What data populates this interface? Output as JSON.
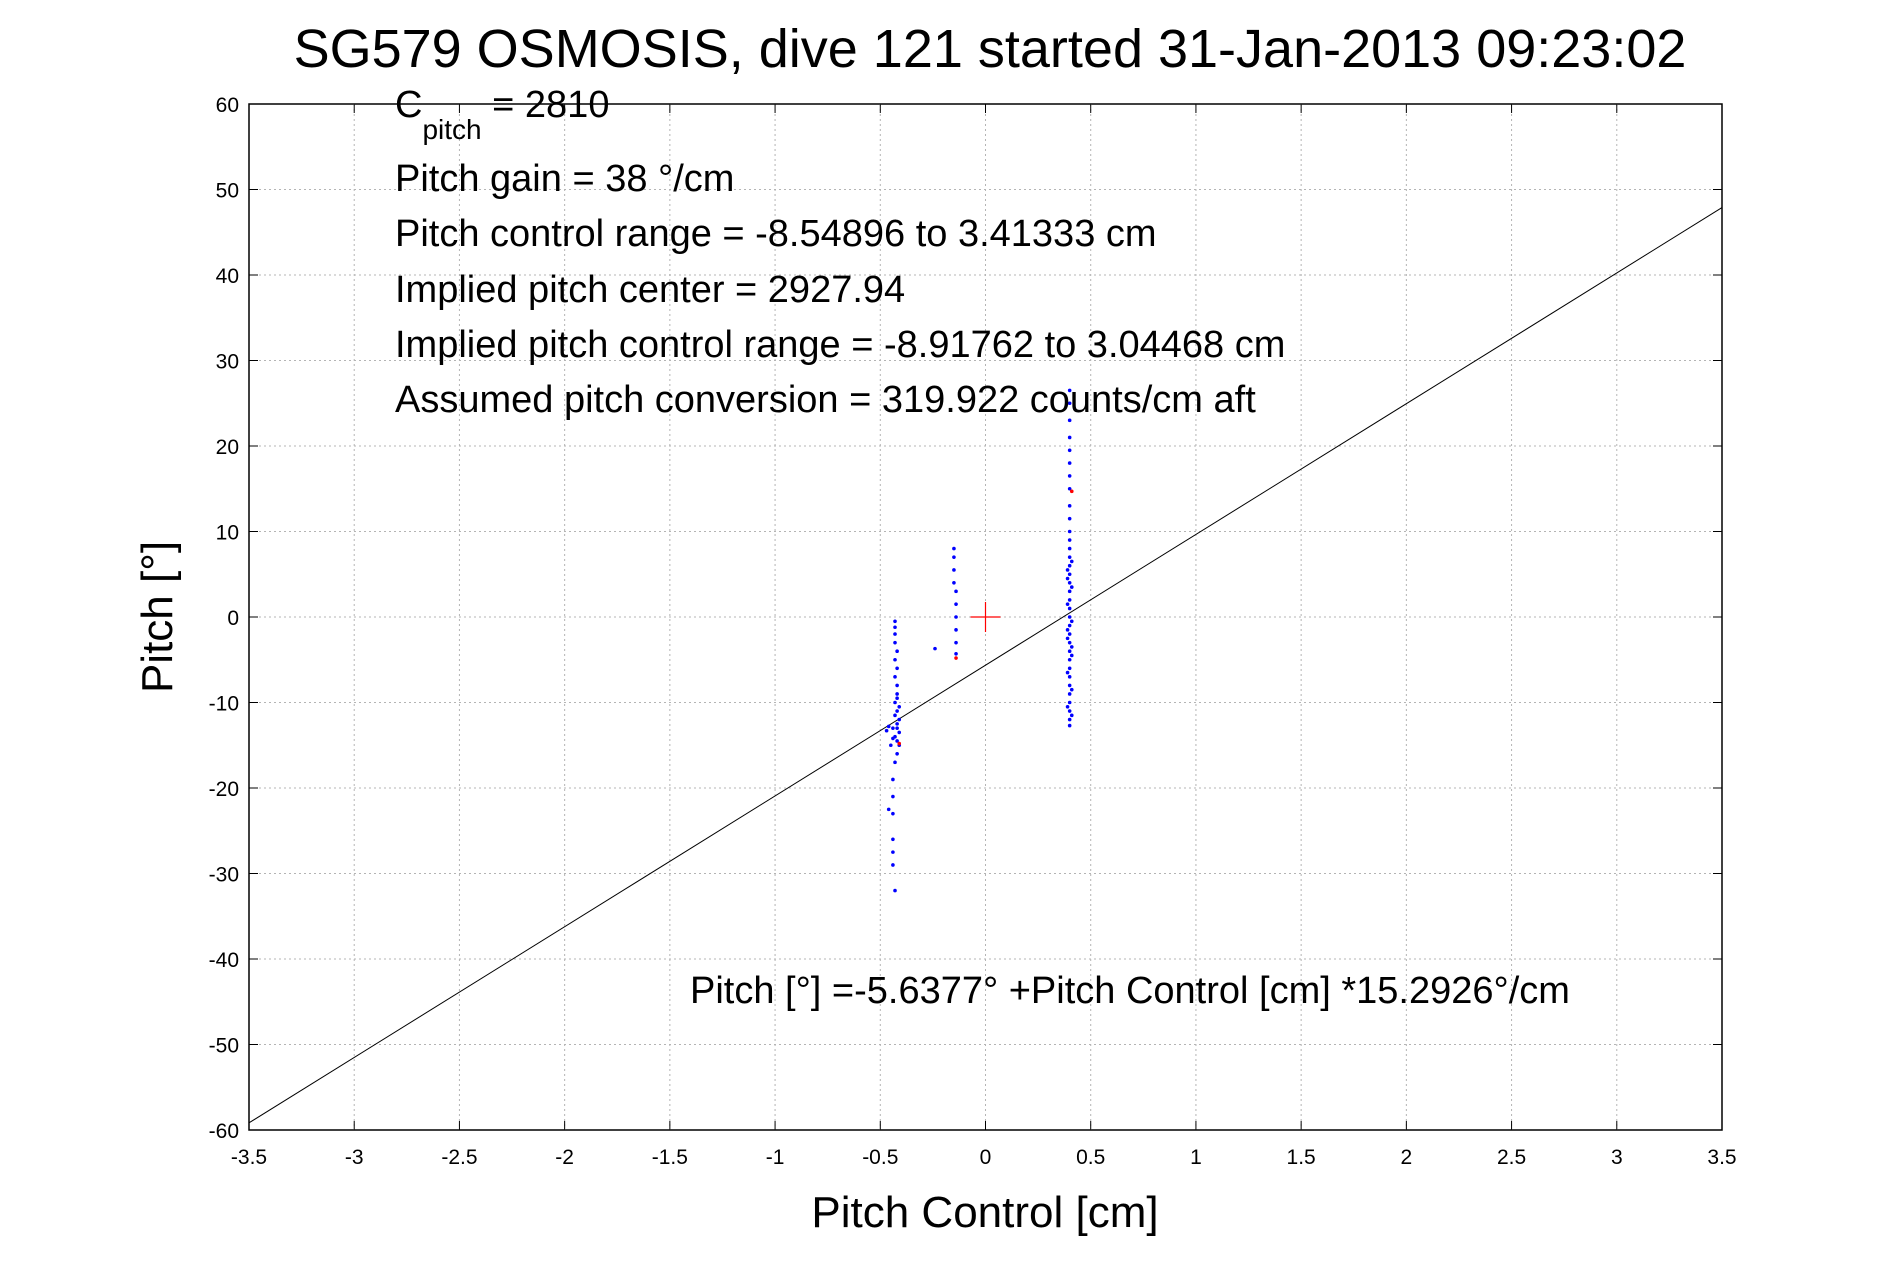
{
  "chart_data": {
    "type": "scatter",
    "title": "SG579 OSMOSIS, dive 121 started 31-Jan-2013 09:23:02",
    "xlabel": "Pitch Control [cm]",
    "ylabel": "Pitch [°]",
    "xlim": [
      -3.5,
      3.5
    ],
    "ylim": [
      -60,
      60
    ],
    "xticks": [
      -3.5,
      -3,
      -2.5,
      -2,
      -1.5,
      -1,
      -0.5,
      0,
      0.5,
      1,
      1.5,
      2,
      2.5,
      3,
      3.5
    ],
    "xtick_labels": [
      "-3.5",
      "-3",
      "-2.5",
      "-2",
      "-1.5",
      "-1",
      "-0.5",
      "0",
      "0.5",
      "1",
      "1.5",
      "2",
      "2.5",
      "3",
      "3.5"
    ],
    "yticks": [
      60,
      50,
      40,
      30,
      20,
      10,
      0,
      -10,
      -20,
      -30,
      -40,
      -50,
      -60
    ],
    "ytick_labels": [
      "60",
      "50",
      "40",
      "30",
      "20",
      "10",
      "0",
      "-10",
      "-20",
      "-30",
      "-40",
      "-50",
      "-60"
    ],
    "grid": true,
    "fit": {
      "intercept": -5.6377,
      "slope": 15.2926
    },
    "annotations": {
      "c_pitch_main": "C",
      "c_pitch_sub": "pitch",
      "c_pitch_value": " = 2810",
      "pitch_gain": "Pitch gain = 38 °/cm",
      "control_range": "Pitch control range = -8.54896 to 3.41333 cm",
      "implied_center": "Implied pitch center = 2927.94",
      "implied_range": "Implied pitch control range = -8.91762 to 3.04468 cm",
      "conversion": "Assumed pitch conversion = 319.922 counts/cm aft",
      "fit_equation": "Pitch [°] =-5.6377° +Pitch Control [cm] *15.2926°/cm"
    },
    "center_marker": {
      "x": 0,
      "y": 0
    },
    "colors": {
      "points": "#0000ff",
      "highlight": "#ff0000",
      "fit_line": "#000000",
      "grid": "#b4b4b4"
    },
    "series": [
      {
        "color": "#0000ff",
        "points": [
          [
            -0.43,
            -0.5
          ],
          [
            -0.43,
            -1.2
          ],
          [
            -0.43,
            -2
          ],
          [
            -0.43,
            -3
          ],
          [
            -0.42,
            -4
          ],
          [
            -0.43,
            -5
          ],
          [
            -0.42,
            -6
          ],
          [
            -0.43,
            -7
          ],
          [
            -0.42,
            -8
          ],
          [
            -0.42,
            -9
          ],
          [
            -0.43,
            -10
          ],
          [
            -0.42,
            -11
          ],
          [
            -0.41,
            -12
          ],
          [
            -0.42,
            -13
          ],
          [
            -0.43,
            -14
          ],
          [
            -0.41,
            -15
          ],
          [
            -0.42,
            -16
          ],
          [
            -0.43,
            -17
          ],
          [
            -0.42,
            -9.5
          ],
          [
            -0.41,
            -10.5
          ],
          [
            -0.43,
            -11.5
          ],
          [
            -0.42,
            -12.5
          ],
          [
            -0.41,
            -13.5
          ],
          [
            -0.42,
            -14.5
          ],
          [
            -0.44,
            -13
          ],
          [
            -0.44,
            -14.2
          ],
          [
            -0.45,
            -15
          ],
          [
            -0.46,
            -12.8
          ],
          [
            -0.47,
            -13.3
          ],
          [
            -0.44,
            -19
          ],
          [
            -0.44,
            -21
          ],
          [
            -0.46,
            -22.5
          ],
          [
            -0.44,
            -23
          ],
          [
            -0.44,
            -26
          ],
          [
            -0.44,
            -27.5
          ],
          [
            -0.44,
            -29
          ],
          [
            -0.43,
            -32
          ],
          [
            -0.24,
            -3.7
          ],
          [
            -0.15,
            8
          ],
          [
            -0.15,
            7
          ],
          [
            -0.15,
            5.5
          ],
          [
            -0.15,
            4
          ],
          [
            -0.14,
            3
          ],
          [
            -0.14,
            1.5
          ],
          [
            -0.14,
            0
          ],
          [
            -0.14,
            -1.5
          ],
          [
            -0.14,
            -3
          ],
          [
            -0.14,
            -4.3
          ],
          [
            0.4,
            26.5
          ],
          [
            0.4,
            25
          ],
          [
            0.4,
            23
          ],
          [
            0.4,
            21
          ],
          [
            0.4,
            19.5
          ],
          [
            0.4,
            18
          ],
          [
            0.4,
            16.5
          ],
          [
            0.4,
            15
          ],
          [
            0.4,
            13
          ],
          [
            0.4,
            11.5
          ],
          [
            0.4,
            10
          ],
          [
            0.4,
            9
          ],
          [
            0.4,
            8
          ],
          [
            0.4,
            7
          ],
          [
            0.4,
            6
          ],
          [
            0.4,
            5
          ],
          [
            0.4,
            4
          ],
          [
            0.4,
            3
          ],
          [
            0.4,
            2
          ],
          [
            0.4,
            1
          ],
          [
            0.4,
            0
          ],
          [
            0.4,
            -1
          ],
          [
            0.4,
            -2
          ],
          [
            0.4,
            -3
          ],
          [
            0.4,
            -4
          ],
          [
            0.4,
            -5
          ],
          [
            0.4,
            -6
          ],
          [
            0.4,
            -7
          ],
          [
            0.4,
            -8
          ],
          [
            0.4,
            -9
          ],
          [
            0.4,
            -10
          ],
          [
            0.4,
            -11
          ],
          [
            0.4,
            -12
          ],
          [
            0.4,
            -12.7
          ],
          [
            0.39,
            5.5
          ],
          [
            0.41,
            3.5
          ],
          [
            0.39,
            1.5
          ],
          [
            0.41,
            -0.5
          ],
          [
            0.39,
            -2.5
          ],
          [
            0.41,
            -4.5
          ],
          [
            0.39,
            -6.5
          ],
          [
            0.41,
            -8.5
          ],
          [
            0.39,
            -10.5
          ],
          [
            0.41,
            -11.5
          ],
          [
            0.39,
            4.5
          ],
          [
            0.41,
            6.5
          ],
          [
            0.39,
            -1.5
          ],
          [
            0.41,
            -3.5
          ]
        ]
      },
      {
        "color": "#ff0000",
        "points": [
          [
            -0.41,
            -14.8
          ],
          [
            0.41,
            14.7
          ],
          [
            -0.14,
            -4.8
          ]
        ]
      }
    ]
  }
}
